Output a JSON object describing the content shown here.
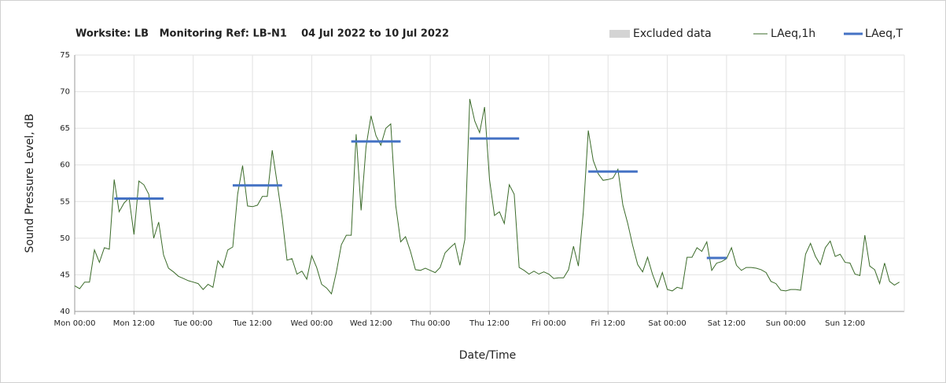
{
  "chart_data": {
    "type": "line",
    "title": "Worksite: LB   Monitoring Ref: LB-N1    04 Jul 2022 to 10 Jul 2022",
    "x_label": "Date/Time",
    "y_label": "Sound Pressure Level, dB",
    "xlim": [
      0,
      168
    ],
    "xticks": [
      {
        "value": 0,
        "label": "Mon 00:00"
      },
      {
        "value": 12,
        "label": "Mon 12:00"
      },
      {
        "value": 24,
        "label": "Tue 00:00"
      },
      {
        "value": 36,
        "label": "Tue 12:00"
      },
      {
        "value": 48,
        "label": "Wed 00:00"
      },
      {
        "value": 60,
        "label": "Wed 12:00"
      },
      {
        "value": 72,
        "label": "Thu 00:00"
      },
      {
        "value": 84,
        "label": "Thu 12:00"
      },
      {
        "value": 96,
        "label": "Fri 00:00"
      },
      {
        "value": 108,
        "label": "Fri 12:00"
      },
      {
        "value": 120,
        "label": "Sat 00:00"
      },
      {
        "value": 132,
        "label": "Sat 12:00"
      },
      {
        "value": 144,
        "label": "Sun 00:00"
      },
      {
        "value": 156,
        "label": "Sun 12:00"
      }
    ],
    "ylim": [
      40,
      75
    ],
    "yticks": [
      40,
      45,
      50,
      55,
      60,
      65,
      70,
      75
    ],
    "grid": true,
    "legend": "top-right",
    "series": [
      {
        "name": "Excluded data",
        "kind": "area",
        "color": "#d4d4d4",
        "values": []
      },
      {
        "name": "LAeq,1h",
        "kind": "line",
        "color": "#3b6b2a",
        "x": [
          0,
          1,
          2,
          3,
          4,
          5,
          6,
          7,
          8,
          9,
          10,
          11,
          12,
          13,
          14,
          15,
          16,
          17,
          18,
          19,
          20,
          21,
          22,
          23,
          24,
          25,
          26,
          27,
          28,
          29,
          30,
          31,
          32,
          33,
          34,
          35,
          36,
          37,
          38,
          39,
          40,
          41,
          42,
          43,
          44,
          45,
          46,
          47,
          48,
          49,
          50,
          51,
          52,
          53,
          54,
          55,
          56,
          57,
          58,
          59,
          60,
          61,
          62,
          63,
          64,
          65,
          66,
          67,
          68,
          69,
          70,
          71,
          72,
          73,
          74,
          75,
          76,
          77,
          78,
          79,
          80,
          81,
          82,
          83,
          84,
          85,
          86,
          87,
          88,
          89,
          90,
          91,
          92,
          93,
          94,
          95,
          96,
          97,
          98,
          99,
          100,
          101,
          102,
          103,
          104,
          105,
          106,
          107,
          108,
          109,
          110,
          111,
          112,
          113,
          114,
          115,
          116,
          117,
          118,
          119,
          120,
          121,
          122,
          123,
          124,
          125,
          126,
          127,
          128,
          129,
          130,
          131,
          132,
          133,
          134,
          135,
          136,
          137,
          138,
          139,
          140,
          141,
          142,
          143,
          144,
          145,
          146,
          147,
          148,
          149,
          150,
          151,
          152,
          153,
          154,
          155,
          156,
          157,
          158,
          159,
          160,
          161,
          162,
          163,
          164,
          165,
          166,
          167
        ],
        "values": [
          43.5,
          43.1,
          44,
          44,
          48.4,
          46.7,
          48.7,
          48.5,
          58,
          53.6,
          54.8,
          55.5,
          50.5,
          57.8,
          57.3,
          56,
          50,
          52.2,
          47.7,
          45.9,
          45.4,
          44.8,
          44.5,
          44.2,
          44,
          43.8,
          43,
          43.7,
          43.3,
          46.9,
          46,
          48.4,
          48.8,
          56,
          59.9,
          54.4,
          54.3,
          54.5,
          55.7,
          55.7,
          62,
          57.5,
          52.8,
          47,
          47.2,
          45.1,
          45.5,
          44.4,
          47.6,
          46,
          43.7,
          43.2,
          42.4,
          45.4,
          49.1,
          50.4,
          50.4,
          64.2,
          53.8,
          62.5,
          66.7,
          64,
          62.7,
          65,
          65.6,
          54.5,
          49.5,
          50.2,
          48.2,
          45.7,
          45.6,
          45.9,
          45.6,
          45.3,
          46,
          48,
          48.7,
          49.3,
          46.3,
          49.8,
          69,
          66,
          64.4,
          67.9,
          58,
          53.1,
          53.6,
          52,
          57.3,
          56,
          46,
          45.6,
          45.1,
          45.5,
          45.1,
          45.4,
          45.1,
          44.5,
          44.6,
          44.6,
          45.7,
          48.9,
          46.2,
          53.6,
          64.7,
          60.6,
          58.8,
          57.9,
          58,
          58.2,
          59.4,
          54.5,
          52,
          49,
          46.4,
          45.4,
          47.4,
          45.1,
          43.3,
          45.3,
          43,
          42.8,
          43.3,
          43.1,
          47.4,
          47.4,
          48.7,
          48.2,
          49.5,
          45.6,
          46.6,
          46.8,
          47.2,
          48.7,
          46.3,
          45.6,
          46,
          46,
          45.9,
          45.7,
          45.3,
          44.1,
          43.8,
          42.9,
          42.8,
          43,
          43,
          42.9,
          47.8,
          49.3,
          47.5,
          46.4,
          48.7,
          49.6,
          47.5,
          47.8,
          46.7,
          46.6,
          45.1,
          44.9,
          50.4,
          46.2,
          45.7,
          43.8,
          46.6,
          44.1,
          43.6,
          44
        ]
      },
      {
        "name": "LAeq,T",
        "kind": "segments",
        "color": "#4472c4",
        "x_start": [
          8,
          32,
          56,
          80,
          104,
          128
        ],
        "x_end": [
          18,
          42,
          66,
          90,
          114,
          132
        ],
        "values": [
          55.4,
          57.2,
          63.2,
          63.6,
          59.1,
          47.3
        ]
      }
    ]
  }
}
